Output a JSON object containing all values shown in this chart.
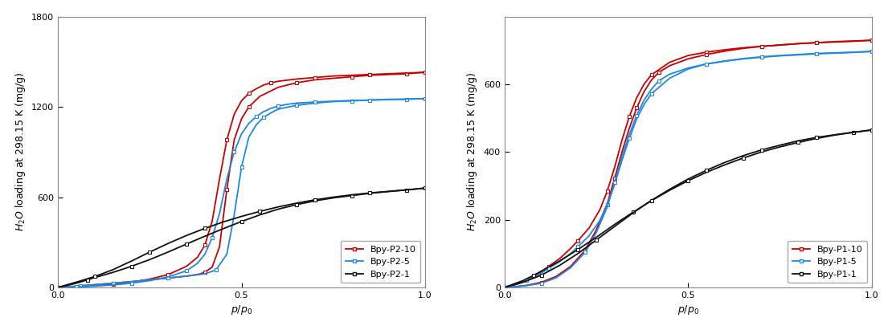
{
  "left_plot": {
    "ylabel": "$H_2O$ loading at 298.15 K (mg/g)",
    "xlabel": "$p/p_0$",
    "ylim": [
      0,
      1800
    ],
    "xlim": [
      0,
      1.0
    ],
    "yticks": [
      0,
      600,
      1200,
      1800
    ],
    "xticks": [
      0,
      0.5,
      1
    ],
    "series": [
      {
        "label": "Bpy-P2-10",
        "color": "#cc0000",
        "adsorption_x": [
          0.0,
          0.02,
          0.04,
          0.06,
          0.08,
          0.1,
          0.15,
          0.2,
          0.25,
          0.3,
          0.35,
          0.38,
          0.4,
          0.42,
          0.44,
          0.46,
          0.48,
          0.5,
          0.52,
          0.55,
          0.6,
          0.65,
          0.7,
          0.75,
          0.8,
          0.85,
          0.9,
          0.95,
          1.0
        ],
        "adsorption_y": [
          0,
          3,
          6,
          10,
          14,
          18,
          28,
          38,
          50,
          62,
          75,
          85,
          100,
          135,
          270,
          650,
          980,
          1120,
          1200,
          1270,
          1330,
          1360,
          1380,
          1390,
          1400,
          1410,
          1415,
          1420,
          1430
        ],
        "desorption_x": [
          1.0,
          0.95,
          0.9,
          0.85,
          0.8,
          0.75,
          0.7,
          0.65,
          0.6,
          0.58,
          0.56,
          0.54,
          0.52,
          0.5,
          0.48,
          0.46,
          0.44,
          0.42,
          0.4,
          0.38,
          0.35,
          0.3,
          0.25,
          0.2,
          0.15,
          0.1,
          0.05,
          0.0
        ],
        "desorption_y": [
          1430,
          1425,
          1420,
          1415,
          1410,
          1405,
          1395,
          1385,
          1370,
          1360,
          1345,
          1320,
          1290,
          1240,
          1150,
          980,
          720,
          440,
          280,
          200,
          140,
          85,
          55,
          35,
          20,
          12,
          5,
          0
        ]
      },
      {
        "label": "Bpy-P2-5",
        "color": "#1e88e5",
        "adsorption_x": [
          0.0,
          0.02,
          0.04,
          0.06,
          0.08,
          0.1,
          0.15,
          0.2,
          0.25,
          0.3,
          0.35,
          0.4,
          0.43,
          0.46,
          0.48,
          0.5,
          0.52,
          0.54,
          0.56,
          0.58,
          0.6,
          0.65,
          0.7,
          0.75,
          0.8,
          0.85,
          0.9,
          0.95,
          1.0
        ],
        "adsorption_y": [
          0,
          3,
          6,
          10,
          14,
          18,
          28,
          38,
          50,
          62,
          75,
          90,
          115,
          220,
          480,
          800,
          1000,
          1080,
          1130,
          1160,
          1185,
          1210,
          1225,
          1235,
          1240,
          1245,
          1248,
          1250,
          1255
        ],
        "desorption_x": [
          1.0,
          0.95,
          0.9,
          0.85,
          0.8,
          0.75,
          0.7,
          0.65,
          0.62,
          0.6,
          0.58,
          0.56,
          0.54,
          0.52,
          0.5,
          0.48,
          0.46,
          0.44,
          0.42,
          0.4,
          0.38,
          0.35,
          0.3,
          0.25,
          0.2,
          0.15,
          0.1,
          0.05,
          0.0
        ],
        "desorption_y": [
          1255,
          1252,
          1250,
          1245,
          1242,
          1238,
          1232,
          1225,
          1215,
          1205,
          1190,
          1168,
          1135,
          1090,
          1020,
          900,
          720,
          490,
          330,
          220,
          160,
          110,
          70,
          45,
          28,
          16,
          8,
          3,
          0
        ]
      },
      {
        "label": "Bpy-P2-1",
        "color": "#111111",
        "adsorption_x": [
          0.0,
          0.02,
          0.05,
          0.08,
          0.1,
          0.15,
          0.2,
          0.25,
          0.3,
          0.35,
          0.4,
          0.45,
          0.5,
          0.55,
          0.6,
          0.65,
          0.7,
          0.75,
          0.8,
          0.85,
          0.9,
          0.95,
          1.0
        ],
        "adsorption_y": [
          0,
          10,
          28,
          50,
          65,
          100,
          140,
          185,
          235,
          288,
          340,
          390,
          438,
          482,
          520,
          550,
          575,
          595,
          610,
          625,
          637,
          648,
          660
        ],
        "desorption_x": [
          1.0,
          0.95,
          0.9,
          0.85,
          0.8,
          0.75,
          0.7,
          0.65,
          0.6,
          0.55,
          0.5,
          0.45,
          0.4,
          0.35,
          0.3,
          0.25,
          0.2,
          0.15,
          0.1,
          0.05,
          0.0
        ],
        "desorption_y": [
          660,
          648,
          638,
          628,
          615,
          600,
          582,
          560,
          535,
          505,
          472,
          435,
          392,
          345,
          292,
          235,
          175,
          118,
          72,
          35,
          0
        ]
      }
    ]
  },
  "right_plot": {
    "ylabel": "$H_2O$ loading at 298.15 K (mg/g)",
    "xlabel": "$p/p_0$",
    "ylim": [
      0,
      800
    ],
    "xlim": [
      0,
      1.0
    ],
    "yticks": [
      0,
      200,
      400,
      600
    ],
    "xticks": [
      0,
      0.5,
      1
    ],
    "series": [
      {
        "label": "Bpy-P1-10",
        "color": "#cc0000",
        "adsorption_x": [
          0.0,
          0.02,
          0.04,
          0.06,
          0.08,
          0.1,
          0.12,
          0.15,
          0.18,
          0.2,
          0.23,
          0.26,
          0.28,
          0.3,
          0.32,
          0.34,
          0.36,
          0.38,
          0.4,
          0.45,
          0.5,
          0.55,
          0.6,
          0.65,
          0.7,
          0.75,
          0.8,
          0.85,
          0.9,
          0.95,
          1.0
        ],
        "adsorption_y": [
          0,
          5,
          12,
          20,
          32,
          46,
          62,
          85,
          115,
          138,
          175,
          230,
          285,
          355,
          435,
          505,
          560,
          600,
          628,
          665,
          685,
          695,
          702,
          708,
          712,
          716,
          720,
          723,
          725,
          727,
          730
        ],
        "desorption_x": [
          1.0,
          0.95,
          0.9,
          0.85,
          0.8,
          0.75,
          0.7,
          0.65,
          0.6,
          0.55,
          0.5,
          0.45,
          0.42,
          0.4,
          0.38,
          0.36,
          0.34,
          0.32,
          0.3,
          0.28,
          0.25,
          0.22,
          0.18,
          0.14,
          0.1,
          0.06,
          0.02,
          0.0
        ],
        "desorption_y": [
          730,
          728,
          726,
          723,
          720,
          716,
          712,
          706,
          698,
          688,
          675,
          655,
          635,
          612,
          578,
          530,
          470,
          400,
          322,
          248,
          170,
          110,
          62,
          32,
          15,
          6,
          1,
          0
        ]
      },
      {
        "label": "Bpy-P1-5",
        "color": "#1e88e5",
        "adsorption_x": [
          0.0,
          0.02,
          0.04,
          0.06,
          0.08,
          0.1,
          0.12,
          0.15,
          0.18,
          0.2,
          0.23,
          0.26,
          0.28,
          0.3,
          0.32,
          0.34,
          0.36,
          0.38,
          0.4,
          0.45,
          0.5,
          0.55,
          0.6,
          0.65,
          0.7,
          0.75,
          0.8,
          0.85,
          0.9,
          0.95,
          1.0
        ],
        "adsorption_y": [
          0,
          5,
          12,
          20,
          30,
          42,
          56,
          76,
          100,
          120,
          152,
          198,
          245,
          305,
          375,
          440,
          498,
          540,
          572,
          618,
          645,
          660,
          668,
          675,
          680,
          684,
          687,
          690,
          692,
          694,
          697
        ],
        "desorption_x": [
          1.0,
          0.95,
          0.9,
          0.85,
          0.8,
          0.75,
          0.7,
          0.65,
          0.6,
          0.55,
          0.5,
          0.45,
          0.42,
          0.4,
          0.38,
          0.36,
          0.34,
          0.32,
          0.3,
          0.28,
          0.25,
          0.22,
          0.18,
          0.14,
          0.1,
          0.06,
          0.02,
          0.0
        ],
        "desorption_y": [
          697,
          695,
          693,
          691,
          688,
          685,
          681,
          676,
          669,
          660,
          648,
          630,
          610,
          585,
          553,
          508,
          452,
          385,
          310,
          238,
          162,
          104,
          58,
          28,
          12,
          5,
          1,
          0
        ]
      },
      {
        "label": "Bpy-P1-1",
        "color": "#111111",
        "adsorption_x": [
          0.0,
          0.02,
          0.05,
          0.08,
          0.1,
          0.15,
          0.2,
          0.25,
          0.3,
          0.35,
          0.4,
          0.45,
          0.5,
          0.55,
          0.6,
          0.65,
          0.7,
          0.75,
          0.8,
          0.85,
          0.9,
          0.95,
          1.0
        ],
        "adsorption_y": [
          0,
          8,
          20,
          36,
          48,
          78,
          112,
          148,
          186,
          222,
          256,
          287,
          315,
          340,
          362,
          382,
          400,
          415,
          428,
          440,
          450,
          458,
          465
        ],
        "desorption_x": [
          1.0,
          0.95,
          0.9,
          0.85,
          0.8,
          0.75,
          0.7,
          0.65,
          0.6,
          0.55,
          0.5,
          0.45,
          0.4,
          0.35,
          0.3,
          0.25,
          0.2,
          0.15,
          0.1,
          0.05,
          0.0
        ],
        "desorption_y": [
          465,
          458,
          451,
          443,
          433,
          420,
          406,
          389,
          369,
          346,
          320,
          290,
          257,
          220,
          180,
          140,
          100,
          65,
          36,
          15,
          0
        ]
      }
    ]
  },
  "marker": "s",
  "marker_size": 3.5,
  "marker_every_ads": 3,
  "marker_every_des": 3,
  "line_width": 1.3,
  "legend_fontsize": 8,
  "axis_fontsize": 9,
  "tick_fontsize": 8,
  "background_color": "#ffffff",
  "plot_bg_color": "#ffffff"
}
